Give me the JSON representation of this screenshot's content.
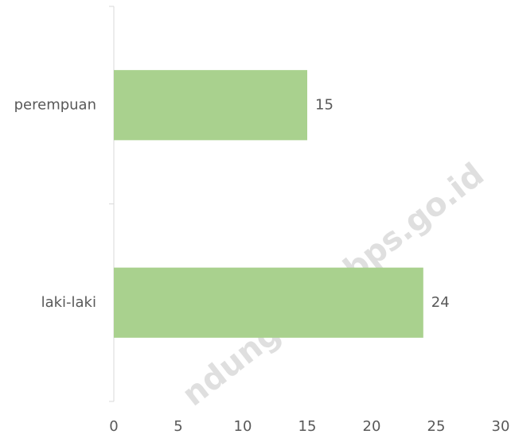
{
  "chart_data": {
    "type": "hbar",
    "categories": [
      "perempuan",
      "laki-laki"
    ],
    "values": [
      15,
      24
    ],
    "color": "#a9d18e",
    "xlim": [
      0,
      30
    ],
    "xticks": [
      0,
      5,
      10,
      15,
      20,
      25,
      30
    ],
    "grid": false,
    "watermark": "ndungkota.bps.go.id"
  }
}
